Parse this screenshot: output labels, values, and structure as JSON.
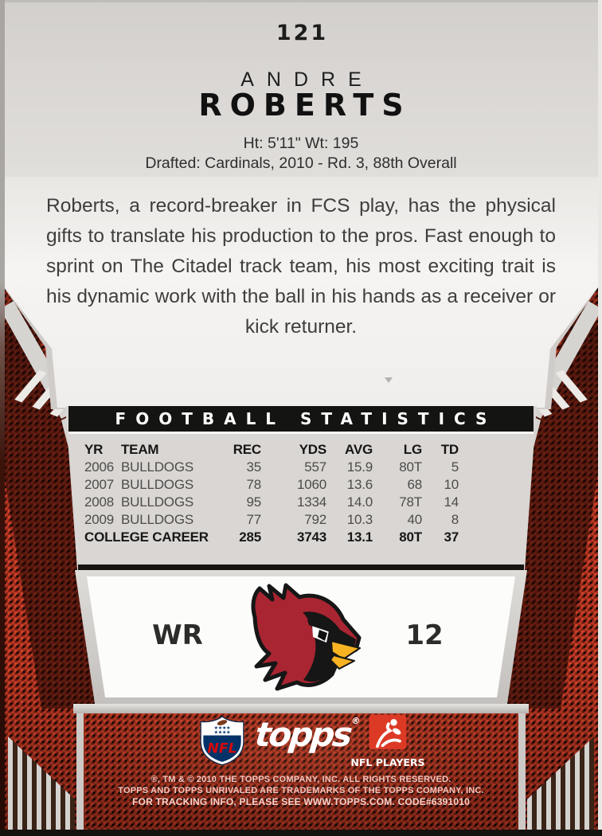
{
  "card": {
    "number": "121",
    "player": {
      "first_name": "ANDRE",
      "last_name": "ROBERTS"
    },
    "vitals": "Ht: 5'11\" Wt: 195",
    "draft_info": "Drafted: Cardinals, 2010 - Rd. 3, 88th Overall",
    "bio": "Roberts, a record-breaker in FCS play, has the physical gifts to translate his production to the pros. Fast enough to sprint on The Citadel track team, his most exciting trait is his dynamic work with the ball in his hands as a receiver or kick returner.",
    "position": "WR",
    "jersey_number": "12",
    "team_logo": "arizona-cardinals-head"
  },
  "stats_table": {
    "title": "FOOTBALL STATISTICS",
    "columns": [
      "YR",
      "TEAM",
      "REC",
      "YDS",
      "AVG",
      "LG",
      "TD"
    ],
    "rows": [
      [
        "2006",
        "BULLDOGS",
        "35",
        "557",
        "15.9",
        "80T",
        "5"
      ],
      [
        "2007",
        "BULLDOGS",
        "78",
        "1060",
        "13.6",
        "68",
        "10"
      ],
      [
        "2008",
        "BULLDOGS",
        "95",
        "1334",
        "14.0",
        "78T",
        "14"
      ],
      [
        "2009",
        "BULLDOGS",
        "77",
        "792",
        "10.3",
        "40",
        "8"
      ]
    ],
    "career_row": [
      "COLLEGE CAREER",
      "285",
      "3743",
      "13.1",
      "80T",
      "37"
    ]
  },
  "footer": {
    "nfl_shield_label": "NFL",
    "topps_logo_text": "topps",
    "topps_reg": "®",
    "nfl_players_label": "NFL PLAYERS",
    "legal_line1": "®, TM & © 2010 THE TOPPS COMPANY, INC. ALL RIGHTS RESERVED.",
    "legal_line2": "TOPPS AND TOPPS UNRIVALED ARE TRADEMARKS OF THE TOPPS COMPANY, INC.",
    "legal_line3": "FOR TRACKING INFO, PLEASE SEE WWW.TOPPS.COM. CODE#6391010"
  },
  "colors": {
    "cardinal_red": "#a92531",
    "beak_yellow": "#f7b322",
    "nfl_blue": "#013369",
    "nfl_red": "#d50a0a",
    "players_red": "#dd3a26",
    "hex_pattern_red": "#cc4129",
    "legal_text": "#eec6bf"
  }
}
